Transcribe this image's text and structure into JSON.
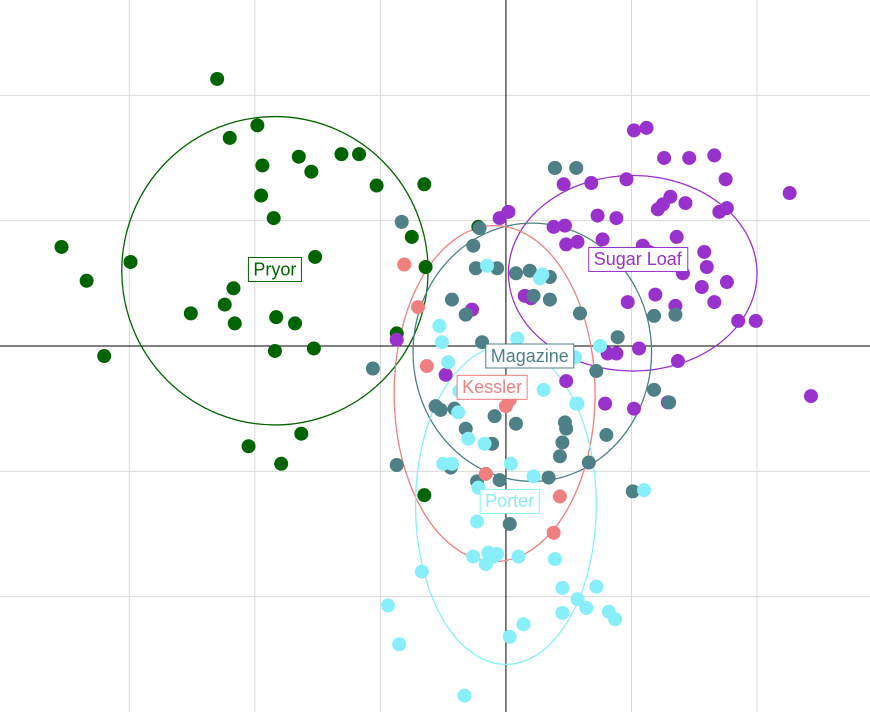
{
  "chart_data": {
    "type": "scatter",
    "title": "",
    "xlabel": "",
    "ylabel": "",
    "xlim": [
      -4.03,
      2.9
    ],
    "ylim": [
      -2.92,
      2.76
    ],
    "grid": true,
    "gridlines_x": [
      -3,
      -2,
      -1,
      0,
      1,
      2
    ],
    "gridlines_y": [
      -2,
      -1,
      0,
      1,
      2
    ],
    "axes_through_origin": true,
    "legend": "none",
    "series": [
      {
        "name": "Pryor",
        "color": "#006400",
        "ellipse": {
          "cx": -1.84,
          "cy": 0.6,
          "rx": 1.22,
          "ry": 1.23
        },
        "label_pos": [
          -1.84,
          0.61
        ],
        "points": [
          [
            -2.3,
            2.13
          ],
          [
            -2.2,
            1.66
          ],
          [
            -1.98,
            1.76
          ],
          [
            -1.94,
            1.44
          ],
          [
            -1.85,
            1.02
          ],
          [
            -1.65,
            1.51
          ],
          [
            -1.55,
            1.39
          ],
          [
            -1.03,
            1.28
          ],
          [
            -1.31,
            1.53
          ],
          [
            -1.17,
            1.53
          ],
          [
            -3.54,
            0.79
          ],
          [
            -3.34,
            0.52
          ],
          [
            -2.99,
            0.67
          ],
          [
            -2.51,
            0.26
          ],
          [
            -2.24,
            0.33
          ],
          [
            -2.17,
            0.46
          ],
          [
            -2.16,
            0.18
          ],
          [
            -1.83,
            0.23
          ],
          [
            -1.68,
            0.18
          ],
          [
            -1.53,
            -0.02
          ],
          [
            -3.2,
            -0.08
          ],
          [
            -1.84,
            -0.04
          ],
          [
            -1.52,
            0.71
          ],
          [
            -2.05,
            -0.8
          ],
          [
            -1.79,
            -0.94
          ],
          [
            -1.63,
            -0.7
          ],
          [
            -0.75,
            0.87
          ],
          [
            -0.65,
            1.29
          ],
          [
            -0.64,
            0.63
          ],
          [
            -0.87,
            0.1
          ],
          [
            -0.22,
            0.95
          ],
          [
            -0.65,
            -1.19
          ],
          [
            -1.95,
            1.2
          ]
        ]
      },
      {
        "name": "Sugar Loaf",
        "color": "#9932CC",
        "ellipse": {
          "cx": 1.01,
          "cy": 0.58,
          "rx": 0.99,
          "ry": 0.78
        },
        "label_pos": [
          1.05,
          0.69
        ],
        "points": [
          [
            1.02,
            1.72
          ],
          [
            1.12,
            1.74
          ],
          [
            1.26,
            1.5
          ],
          [
            1.46,
            1.5
          ],
          [
            1.66,
            1.52
          ],
          [
            0.39,
            1.42
          ],
          [
            0.46,
            1.29
          ],
          [
            0.68,
            1.3
          ],
          [
            0.96,
            1.33
          ],
          [
            1.75,
            1.33
          ],
          [
            1.31,
            1.19
          ],
          [
            1.25,
            1.13
          ],
          [
            1.43,
            1.14
          ],
          [
            1.21,
            1.09
          ],
          [
            1.76,
            1.1
          ],
          [
            1.7,
            1.07
          ],
          [
            0.73,
            1.04
          ],
          [
            0.88,
            1.02
          ],
          [
            0.47,
            0.96
          ],
          [
            0.38,
            0.95
          ],
          [
            0.48,
            0.81
          ],
          [
            0.57,
            0.83
          ],
          [
            0.77,
            0.85
          ],
          [
            1.09,
            0.8
          ],
          [
            1.36,
            0.87
          ],
          [
            1.14,
            0.75
          ],
          [
            1.58,
            0.75
          ],
          [
            0.74,
            0.69
          ],
          [
            0.95,
            0.69
          ],
          [
            1.25,
            0.72
          ],
          [
            1.6,
            0.63
          ],
          [
            1.41,
            0.58
          ],
          [
            1.76,
            0.51
          ],
          [
            1.56,
            0.47
          ],
          [
            1.19,
            0.41
          ],
          [
            1.66,
            0.35
          ],
          [
            0.97,
            0.35
          ],
          [
            1.35,
            0.32
          ],
          [
            0.15,
            0.4
          ],
          [
            0.2,
            0.38
          ],
          [
            -0.27,
            0.29
          ],
          [
            1.85,
            0.2
          ],
          [
            1.99,
            0.2
          ],
          [
            0.81,
            -0.06
          ],
          [
            0.88,
            -0.06
          ],
          [
            1.06,
            -0.02
          ],
          [
            1.37,
            -0.12
          ],
          [
            0.48,
            -0.28
          ],
          [
            -0.48,
            -0.23
          ],
          [
            0.79,
            -0.46
          ],
          [
            1.02,
            -0.5
          ],
          [
            1.29,
            -0.45
          ],
          [
            2.43,
            -0.4
          ],
          [
            -0.87,
            0.05
          ],
          [
            2.26,
            1.22
          ],
          [
            0.02,
            1.07
          ],
          [
            -0.05,
            1.02
          ]
        ]
      },
      {
        "name": "Magazine",
        "color": "#4F7F87",
        "ellipse": {
          "cx": 0.21,
          "cy": -0.05,
          "rx": 0.95,
          "ry": 1.03
        },
        "label_pos": [
          0.19,
          -0.08
        ],
        "points": [
          [
            0.39,
            1.42
          ],
          [
            0.56,
            1.42
          ],
          [
            -0.83,
            0.99
          ],
          [
            -0.21,
            0.94
          ],
          [
            -0.26,
            0.8
          ],
          [
            -0.24,
            0.62
          ],
          [
            -0.07,
            0.62
          ],
          [
            0.08,
            0.58
          ],
          [
            0.19,
            0.6
          ],
          [
            0.35,
            0.55
          ],
          [
            0.22,
            0.4
          ],
          [
            0.35,
            0.37
          ],
          [
            -0.43,
            0.37
          ],
          [
            -0.32,
            0.25
          ],
          [
            -0.19,
            0.03
          ],
          [
            0.59,
            0.26
          ],
          [
            0.89,
            0.07
          ],
          [
            0.72,
            -0.2
          ],
          [
            1.18,
            0.24
          ],
          [
            1.35,
            0.25
          ],
          [
            -1.06,
            -0.18
          ],
          [
            -0.56,
            -0.48
          ],
          [
            -0.41,
            -0.5
          ],
          [
            -0.09,
            -0.56
          ],
          [
            0.08,
            -0.62
          ],
          [
            0.47,
            -0.61
          ],
          [
            -0.32,
            -0.66
          ],
          [
            0.45,
            -0.77
          ],
          [
            -0.11,
            -0.78
          ],
          [
            0.48,
            -0.66
          ],
          [
            0.8,
            -0.71
          ],
          [
            0.43,
            -0.88
          ],
          [
            -0.44,
            -0.97
          ],
          [
            -0.87,
            -0.95
          ],
          [
            -0.05,
            -1.07
          ],
          [
            0.34,
            -1.05
          ],
          [
            0.66,
            -0.93
          ],
          [
            0.03,
            -1.42
          ],
          [
            -0.23,
            -1.08
          ],
          [
            1.01,
            -1.16
          ],
          [
            1.18,
            -0.35
          ],
          [
            1.3,
            -0.45
          ],
          [
            -0.52,
            -0.51
          ]
        ]
      },
      {
        "name": "Kessler",
        "color": "#F08080",
        "ellipse": {
          "cx": -0.09,
          "cy": -0.38,
          "rx": 0.8,
          "ry": 1.34
        },
        "label_pos": [
          -0.11,
          -0.33
        ],
        "points": [
          [
            -0.81,
            0.65
          ],
          [
            -0.7,
            0.31
          ],
          [
            -0.63,
            -0.16
          ],
          [
            0.03,
            -0.43
          ],
          [
            0.03,
            -0.42
          ],
          [
            -0.16,
            -1.02
          ],
          [
            0.43,
            -1.2
          ],
          [
            0.38,
            -1.49
          ],
          [
            0.0,
            -0.48
          ]
        ]
      },
      {
        "name": "Porter",
        "color": "#87EEFA",
        "ellipse": {
          "cx": 0.0,
          "cy": -1.27,
          "rx": 0.72,
          "ry": 1.27
        },
        "label_pos": [
          0.03,
          -1.24
        ],
        "points": [
          [
            -0.15,
            0.64
          ],
          [
            0.27,
            0.54
          ],
          [
            0.29,
            0.57
          ],
          [
            0.09,
            0.06
          ],
          [
            -0.53,
            0.16
          ],
          [
            -0.51,
            0.03
          ],
          [
            0.75,
            0.0
          ],
          [
            0.55,
            -0.09
          ],
          [
            -0.46,
            -0.13
          ],
          [
            -0.37,
            -0.36
          ],
          [
            0.3,
            -0.35
          ],
          [
            -0.38,
            -0.53
          ],
          [
            0.56,
            -0.46
          ],
          [
            0.57,
            -0.46
          ],
          [
            0.57,
            -0.46
          ],
          [
            -0.3,
            -0.74
          ],
          [
            -0.17,
            -0.78
          ],
          [
            -0.5,
            -0.94
          ],
          [
            -0.43,
            -0.94
          ],
          [
            0.04,
            -0.94
          ],
          [
            0.22,
            -1.04
          ],
          [
            1.1,
            -1.15
          ],
          [
            -0.23,
            -1.4
          ],
          [
            -0.22,
            -1.13
          ],
          [
            -0.26,
            -1.68
          ],
          [
            -0.14,
            -1.65
          ],
          [
            -0.1,
            -1.68
          ],
          [
            -0.07,
            -1.66
          ],
          [
            -0.16,
            -1.74
          ],
          [
            0.1,
            -1.68
          ],
          [
            0.39,
            -1.7
          ],
          [
            -0.67,
            -1.8
          ],
          [
            0.45,
            -1.93
          ],
          [
            0.72,
            -1.92
          ],
          [
            -0.94,
            -2.07
          ],
          [
            0.57,
            -2.02
          ],
          [
            0.82,
            -2.12
          ],
          [
            0.87,
            -2.18
          ],
          [
            0.14,
            -2.22
          ],
          [
            0.03,
            -2.32
          ],
          [
            -0.85,
            -2.38
          ],
          [
            -0.33,
            -2.79
          ],
          [
            0.45,
            -2.13
          ],
          [
            0.64,
            -2.09
          ]
        ]
      }
    ]
  }
}
